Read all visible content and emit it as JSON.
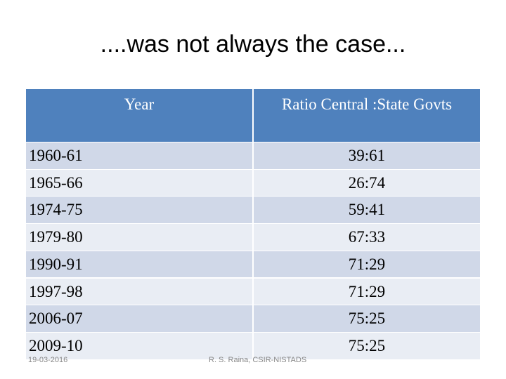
{
  "header": {
    "title": "....was not always the case..."
  },
  "table": {
    "columns": [
      "Year",
      "Ratio Central :State Govts"
    ],
    "rows": [
      [
        "1960-61",
        "39:61"
      ],
      [
        "1965-66",
        "26:74"
      ],
      [
        "1974-75",
        "59:41"
      ],
      [
        "1979-80",
        "67:33"
      ],
      [
        "1990-91",
        "71:29"
      ],
      [
        "1997-98",
        "71:29"
      ],
      [
        "2006-07",
        "75:25"
      ],
      [
        "2009-10",
        "75:25"
      ]
    ]
  },
  "footer": {
    "date": "19-03-2016",
    "author": "R. S. Raina, CSIR-NISTADS"
  }
}
